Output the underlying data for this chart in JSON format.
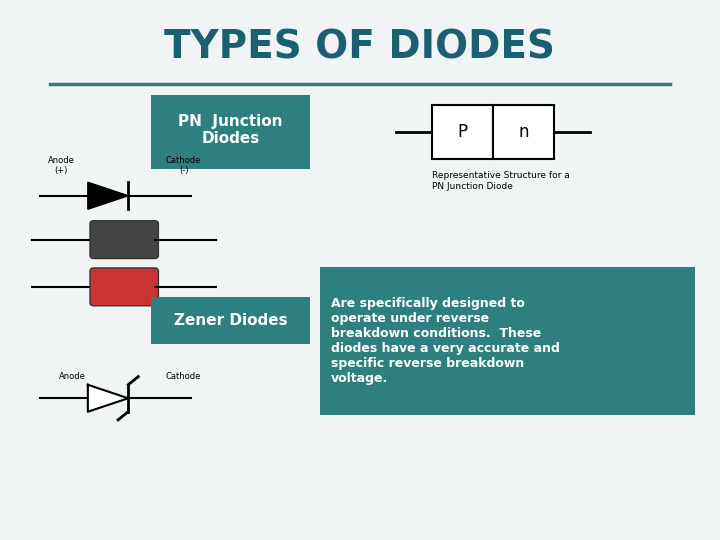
{
  "title": "TYPES OF DIODES",
  "title_color": "#1a6070",
  "title_fontsize": 28,
  "outer_bg": "#c8d8d8",
  "teal_color": "#2e8080",
  "pn_label": "PN  Junction\nDiodes",
  "zener_label": "Zener Diodes",
  "zener_text": "Are specifically designed to\noperate under reverse\nbreakdown conditions.  These\ndiodes have a very accurate and\nspecific reverse breakdown\nvoltage.",
  "rep_structure_text": "Representative Structure for a\nPN Junction Diode",
  "anode_label": "Anode\n(+)",
  "cathode_label": "Cathode\n(-)",
  "anode_label2": "Anode",
  "cathode_label2": "Cathode",
  "p_label": "P",
  "n_label": "n",
  "separator_color": "#2e8080"
}
